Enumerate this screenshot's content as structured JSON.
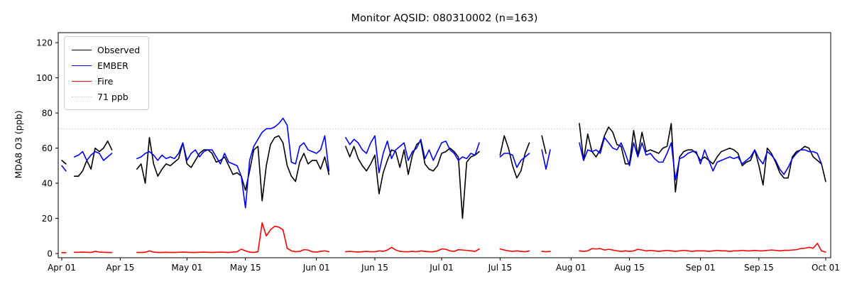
{
  "chart_data": {
    "type": "line",
    "title": "Monitor AQSID: 080310002 (n=163)",
    "xlabel": "",
    "ylabel": "MDA8 O3 (ppb)",
    "grid": false,
    "legend_position": "upper left",
    "ylim": [
      -2.4,
      125.7
    ],
    "xlim_days": [
      -0.85,
      184.2
    ],
    "yticks": [
      0,
      20,
      40,
      60,
      80,
      100,
      120
    ],
    "xticks": [
      {
        "day": 0,
        "label": "Apr 01"
      },
      {
        "day": 14,
        "label": "Apr 15"
      },
      {
        "day": 30,
        "label": "May 01"
      },
      {
        "day": 44,
        "label": "May 15"
      },
      {
        "day": 61,
        "label": "Jun 01"
      },
      {
        "day": 75,
        "label": "Jun 15"
      },
      {
        "day": 91,
        "label": "Jul 01"
      },
      {
        "day": 105,
        "label": "Jul 15"
      },
      {
        "day": 122,
        "label": "Aug 01"
      },
      {
        "day": 136,
        "label": "Aug 15"
      },
      {
        "day": 153,
        "label": "Sep 01"
      },
      {
        "day": 167,
        "label": "Sep 15"
      },
      {
        "day": 183,
        "label": "Oct 01"
      }
    ],
    "threshold": {
      "value": 71,
      "label": "71 ppb",
      "color": "#c8c8c8",
      "style": "dotted"
    },
    "x_start_label": "Apr 01",
    "x_unit": "day index from Apr 01",
    "series": [
      {
        "name": "Observed",
        "color": "#000000",
        "values": [
          53,
          51,
          null,
          44,
          44,
          47,
          53,
          48,
          60,
          58,
          60,
          64,
          59,
          null,
          null,
          null,
          null,
          null,
          48,
          51,
          40,
          66,
          51,
          44,
          48,
          51,
          50,
          52,
          54,
          63,
          51,
          49,
          53,
          57,
          59,
          59,
          57,
          52,
          53,
          55,
          50,
          45,
          46,
          44,
          36,
          47,
          59,
          61,
          30,
          50,
          62,
          66,
          67,
          63,
          50,
          44,
          41,
          52,
          57,
          51,
          53,
          53,
          48,
          55,
          45,
          null,
          null,
          null,
          61,
          55,
          61,
          54,
          50,
          47,
          51,
          56,
          34,
          46,
          53,
          59,
          58,
          49,
          59,
          45,
          56,
          62,
          64,
          51,
          48,
          47,
          50,
          57,
          58,
          60,
          58,
          55,
          20,
          52,
          55,
          56,
          58,
          null,
          null,
          null,
          null,
          56,
          67,
          60,
          50,
          43,
          47,
          57,
          63,
          null,
          null,
          67,
          57,
          null,
          null,
          null,
          null,
          null,
          null,
          null,
          74,
          53,
          68,
          58,
          55,
          59,
          67,
          72,
          69,
          62,
          61,
          51,
          51,
          70,
          56,
          69,
          58,
          59,
          58,
          57,
          60,
          61,
          74,
          35,
          55,
          58,
          59,
          59,
          57,
          53,
          55,
          53,
          51,
          55,
          58,
          59,
          60,
          59,
          57,
          50,
          52,
          53,
          59,
          50,
          39,
          60,
          57,
          52,
          46,
          43,
          43,
          55,
          58,
          59,
          61,
          60,
          55,
          53,
          51,
          41
        ]
      },
      {
        "name": "EMBER",
        "color": "#0000ff",
        "values": [
          50,
          47,
          null,
          55,
          56,
          58,
          53,
          56,
          58,
          57,
          53,
          55,
          57,
          null,
          null,
          null,
          null,
          null,
          54,
          55,
          57,
          58,
          56,
          53,
          56,
          54,
          55,
          54,
          57,
          63,
          53,
          57,
          59,
          55,
          58,
          59,
          59,
          55,
          51,
          57,
          52,
          51,
          50,
          44,
          26,
          53,
          61,
          65,
          69,
          71,
          71,
          72,
          74,
          77,
          73,
          52,
          51,
          61,
          63,
          59,
          58,
          57,
          59,
          67,
          47,
          null,
          null,
          null,
          66,
          62,
          65,
          63,
          59,
          57,
          63,
          67,
          46,
          57,
          64,
          54,
          59,
          61,
          63,
          53,
          58,
          60,
          65,
          54,
          59,
          53,
          58,
          63,
          64,
          59,
          57,
          53,
          55,
          54,
          57,
          56,
          63,
          null,
          null,
          null,
          null,
          55,
          57,
          57,
          56,
          49,
          53,
          55,
          57,
          null,
          null,
          59,
          48,
          59,
          null,
          null,
          null,
          null,
          null,
          null,
          63,
          53,
          59,
          58,
          59,
          57,
          66,
          63,
          60,
          59,
          63,
          57,
          50,
          63,
          55,
          63,
          56,
          57,
          54,
          52,
          52,
          57,
          63,
          42,
          54,
          55,
          57,
          58,
          58,
          51,
          59,
          53,
          47,
          52,
          53,
          54,
          55,
          54,
          55,
          51,
          53,
          55,
          59,
          54,
          51,
          58,
          56,
          53,
          48,
          45,
          49,
          54,
          57,
          59,
          59,
          58,
          58,
          57,
          51,
          null
        ]
      },
      {
        "name": "Fire",
        "color": "#ff0000",
        "values": [
          0.5,
          0.5,
          null,
          0.7,
          0.7,
          0.8,
          0.7,
          0.6,
          1.2,
          0.8,
          0.7,
          0.6,
          0.6,
          null,
          null,
          null,
          null,
          null,
          0.6,
          0.6,
          0.7,
          1.5,
          0.8,
          0.6,
          0.6,
          0.7,
          0.6,
          0.6,
          0.7,
          0.8,
          0.7,
          0.6,
          0.6,
          0.7,
          0.8,
          0.7,
          0.6,
          0.7,
          0.8,
          0.7,
          0.6,
          0.8,
          1.0,
          2.5,
          1.5,
          0.8,
          0.6,
          1.0,
          17.5,
          10,
          13.5,
          15.5,
          15,
          13.5,
          3,
          1.5,
          1,
          1.2,
          2.2,
          2,
          1,
          0.8,
          1.2,
          1.5,
          1,
          null,
          null,
          null,
          1,
          1.2,
          1,
          0.8,
          1,
          1.2,
          1,
          1,
          1.5,
          1.2,
          2,
          3.5,
          2,
          1.2,
          1,
          1,
          1.2,
          1,
          1.5,
          1.2,
          1,
          1,
          1.5,
          2.6,
          2.4,
          1.5,
          1.2,
          2.2,
          2,
          1.8,
          1.5,
          1.2,
          2.6,
          null,
          null,
          null,
          null,
          2.6,
          2,
          1.5,
          1.2,
          1.5,
          1.2,
          1,
          1.5,
          null,
          null,
          1.2,
          1,
          1.2,
          null,
          null,
          null,
          null,
          null,
          null,
          1.5,
          1.2,
          1.5,
          2.8,
          2.6,
          2.8,
          2,
          2.4,
          2,
          1.5,
          1.2,
          1.5,
          1.2,
          1.5,
          2.4,
          2,
          1.5,
          1.8,
          1.5,
          1.2,
          1.5,
          1.8,
          1.5,
          1.2,
          1.5,
          1.8,
          1.5,
          1.2,
          1.5,
          1.5,
          1.5,
          1.2,
          1.5,
          1.8,
          1.5,
          1.5,
          1.2,
          1.5,
          1.5,
          1.8,
          1.5,
          1.5,
          1.8,
          1.5,
          1.5,
          1.8,
          2,
          1.8,
          1.5,
          1.8,
          1.8,
          2,
          2.2,
          2.8,
          3,
          3.5,
          3,
          5.8,
          1.5,
          0.8
        ]
      }
    ]
  }
}
